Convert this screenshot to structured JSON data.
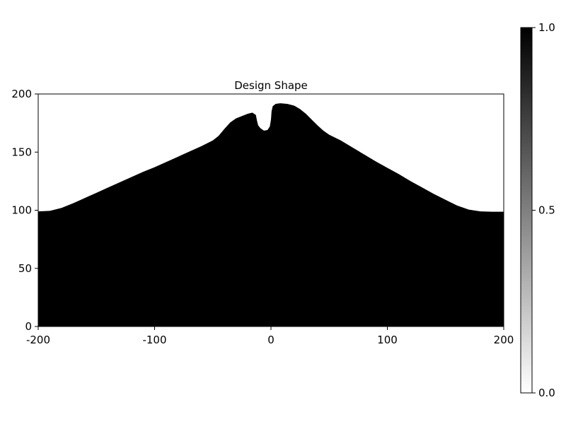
{
  "chart_data": {
    "type": "area",
    "title": "Design Shape",
    "xlabel": "",
    "ylabel": "",
    "xlim": [
      -200,
      200
    ],
    "ylim": [
      0,
      200
    ],
    "xticks": [
      -200,
      -100,
      0,
      100,
      200
    ],
    "xtick_labels": [
      "-200",
      "-100",
      "0",
      "100",
      "200"
    ],
    "yticks": [
      0,
      50,
      100,
      150,
      200
    ],
    "ytick_labels": [
      "0",
      "50",
      "100",
      "150",
      "200"
    ],
    "grid": false,
    "fill_color": "#000000",
    "boundary": [
      [
        -200,
        99
      ],
      [
        -190,
        99.5
      ],
      [
        -180,
        102
      ],
      [
        -170,
        106
      ],
      [
        -160,
        110.5
      ],
      [
        -150,
        115
      ],
      [
        -140,
        119.5
      ],
      [
        -130,
        124
      ],
      [
        -120,
        128.5
      ],
      [
        -110,
        133
      ],
      [
        -100,
        137
      ],
      [
        -90,
        141.5
      ],
      [
        -80,
        146
      ],
      [
        -70,
        150.5
      ],
      [
        -60,
        155
      ],
      [
        -50,
        160
      ],
      [
        -45,
        164
      ],
      [
        -40,
        170
      ],
      [
        -35,
        175.5
      ],
      [
        -30,
        179
      ],
      [
        -25,
        181
      ],
      [
        -20,
        183
      ],
      [
        -16,
        184
      ],
      [
        -13,
        182
      ],
      [
        -12,
        177
      ],
      [
        -11,
        173
      ],
      [
        -9,
        170.5
      ],
      [
        -6,
        168.5
      ],
      [
        -3,
        169
      ],
      [
        -1,
        172
      ],
      [
        0,
        178
      ],
      [
        0.5,
        185
      ],
      [
        1.5,
        189.5
      ],
      [
        4,
        191.5
      ],
      [
        8,
        192
      ],
      [
        14,
        191.5
      ],
      [
        20,
        190
      ],
      [
        25,
        187
      ],
      [
        30,
        183
      ],
      [
        35,
        178
      ],
      [
        40,
        173
      ],
      [
        45,
        168.5
      ],
      [
        50,
        165
      ],
      [
        60,
        160
      ],
      [
        70,
        154
      ],
      [
        80,
        148
      ],
      [
        90,
        142
      ],
      [
        100,
        136.5
      ],
      [
        110,
        131
      ],
      [
        120,
        125
      ],
      [
        130,
        119.5
      ],
      [
        140,
        114
      ],
      [
        150,
        109
      ],
      [
        160,
        104
      ],
      [
        170,
        100.5
      ],
      [
        180,
        99
      ],
      [
        190,
        98.7
      ],
      [
        200,
        98.7
      ]
    ],
    "colorbar": {
      "min": 0.0,
      "max": 1.0,
      "ticks": [
        0.0,
        0.5,
        1.0
      ],
      "tick_labels": [
        "0.0",
        "0.5",
        "1.0"
      ],
      "color_low": "#ffffff",
      "color_high": "#000000"
    }
  }
}
